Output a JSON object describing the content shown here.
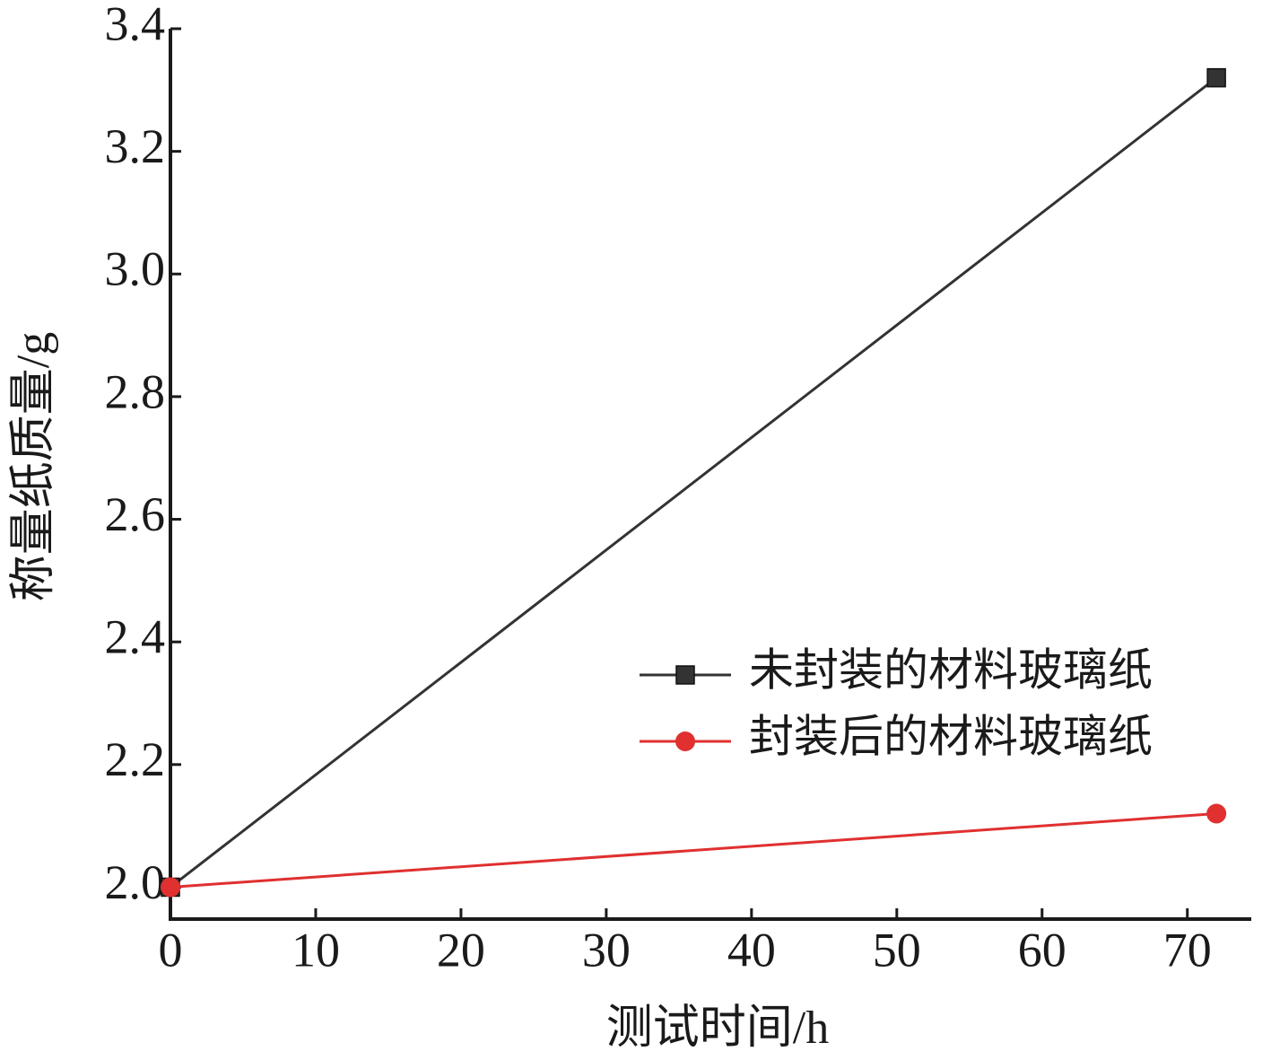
{
  "chart_data": {
    "type": "line",
    "x_label": "测试时间/h",
    "y_label": "称量纸质量/g",
    "x": [
      0,
      72
    ],
    "series": [
      {
        "name": "未封装的材料玻璃纸",
        "color": "#333333",
        "marker": "square",
        "values": [
          2,
          3.32
        ]
      },
      {
        "name": "封装后的材料玻璃纸",
        "color": "#e03030",
        "marker": "circle",
        "values": [
          2,
          2.12
        ]
      }
    ],
    "xlim": [
      0,
      74.4
    ],
    "xticks": [
      0,
      10,
      20,
      30,
      40,
      50,
      60,
      70
    ],
    "ylim": [
      1.948,
      3.4
    ],
    "yticks": [
      {
        "value": 2,
        "label": "2.0"
      },
      2.2,
      2.4,
      2.6,
      2.8,
      {
        "value": 3,
        "label": "3.0"
      },
      3.2,
      3.4
    ],
    "grid": false,
    "legend": "right"
  }
}
